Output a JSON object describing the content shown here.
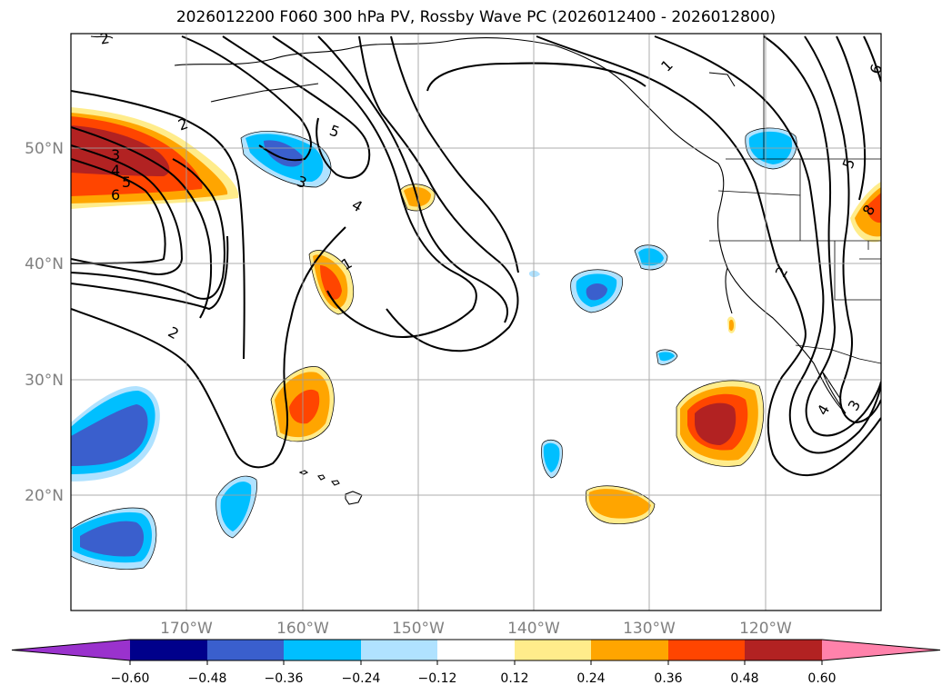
{
  "title": "2026012200 F060 300 hPa PV, Rossby Wave PC (2026012400 - 2026012800)",
  "map": {
    "lat_labels": [
      "50°N",
      "40°N",
      "30°N",
      "20°N"
    ],
    "lon_labels": [
      "170°W",
      "160°W",
      "150°W",
      "140°W",
      "130°W",
      "120°W"
    ],
    "pv_contour_labels": [
      "2",
      "2",
      "3",
      "4",
      "5",
      "6",
      "5",
      "3",
      "4",
      "1",
      "2",
      "1",
      "2",
      "3",
      "4",
      "6",
      "5",
      "8"
    ]
  },
  "colorbar": {
    "ticks": [
      "−0.60",
      "−0.48",
      "−0.36",
      "−0.24",
      "−0.12",
      "0.12",
      "0.24",
      "0.36",
      "0.48",
      "0.60"
    ],
    "colors": [
      "#9a32cd",
      "#00008b",
      "#3a5fcd",
      "#00bfff",
      "#b0e2ff",
      "#ffffff",
      "#ffec8b",
      "#ffa500",
      "#ff4500",
      "#b22222",
      "#ff82ab"
    ]
  }
}
